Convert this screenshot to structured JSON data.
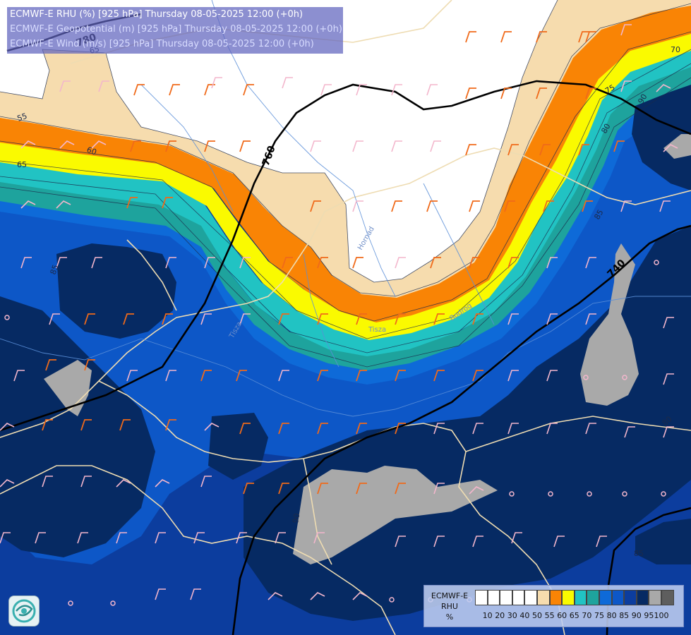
{
  "title": {
    "line1": "ECMWF-E RHU (%) [925 hPa] Thursday 08-05-2025 12:00 (+0h)",
    "line2": "ECMWF-E Geopotential (m) [925 hPa] Thursday 08-05-2025 12:00 (+0h)",
    "line3": "ECMWF-E Wind (m/s) [925 hPa] Thursday 08-05-2025 12:00 (+0h)"
  },
  "legend": {
    "label_line1": "ECMWF-E",
    "label_line2": "RHU",
    "label_line3": "%",
    "colors": [
      "#ffffff",
      "#ffffff",
      "#ffffff",
      "#ffffff",
      "#ffffff",
      "#f6dcae",
      "#f98405",
      "#fafa00",
      "#21c3c3",
      "#1ea39d",
      "#0e6ad8",
      "#0d57c7",
      "#0c3d9e",
      "#062a63",
      "#a9a9a9",
      "#5e5e5e"
    ],
    "ticks": [
      "10",
      "20",
      "30",
      "40",
      "50",
      "55",
      "60",
      "65",
      "70",
      "75",
      "80",
      "85",
      "90",
      "95",
      "100"
    ]
  },
  "contour_labels": {
    "rhu": [
      "55",
      "60",
      "65",
      "70",
      "75",
      "80",
      "85",
      "85",
      "90",
      "90",
      "80",
      "65",
      "85"
    ],
    "geopotential": [
      "780",
      "760",
      "740"
    ]
  },
  "river_labels": [
    "Tisza",
    "Bodrog",
    "Hornád",
    "Tisza"
  ],
  "logo_icon": "institute-logo-icon"
}
